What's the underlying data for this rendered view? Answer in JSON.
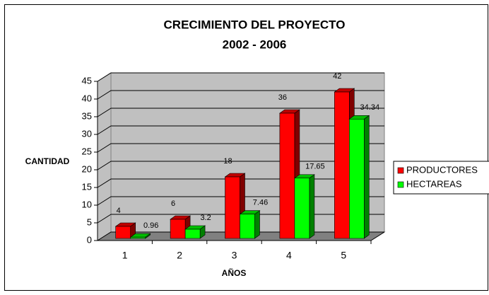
{
  "chart_data": {
    "type": "bar3d",
    "title": "CRECIMIENTO DEL PROYECTO",
    "subtitle": "2002 - 2006",
    "x_label": "AÑOS",
    "y_label": "CANTIDAD",
    "categories": [
      1,
      2,
      3,
      4,
      5
    ],
    "series": [
      {
        "name": "PRODUCTORES",
        "color": "#ff0000",
        "values": [
          4,
          6,
          18,
          36,
          42
        ]
      },
      {
        "name": "HECTAREAS",
        "color": "#00ff00",
        "values": [
          0.96,
          3.2,
          7.46,
          17.65,
          34.34
        ]
      }
    ],
    "ylim": [
      0,
      45
    ],
    "yticks": [
      0,
      5,
      10,
      15,
      20,
      25,
      30,
      35,
      40,
      45
    ],
    "grid": true,
    "legend": "right"
  }
}
